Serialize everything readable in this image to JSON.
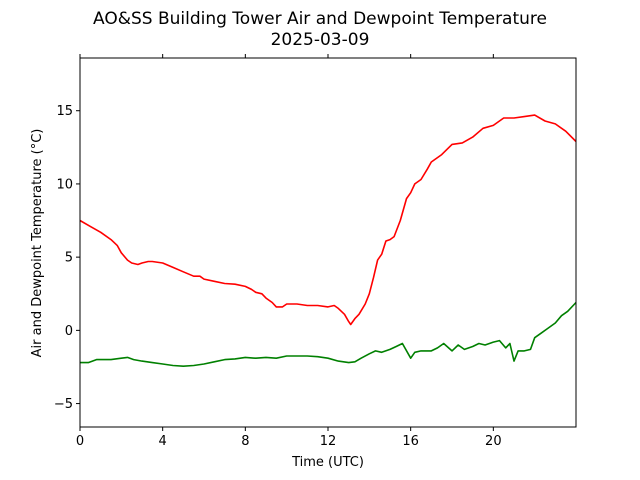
{
  "chart_data": {
    "type": "line",
    "title": "AO&SS Building Tower Air and Dewpoint Temperature",
    "subtitle": "2025-03-09",
    "xlabel": "Time (UTC)",
    "ylabel": "Air and Dewpoint Temperature (°C)",
    "xlim": [
      0,
      24
    ],
    "ylim": [
      -6.6,
      18.6
    ],
    "grid": false,
    "legend": "none",
    "x_ticks": [
      0,
      4,
      8,
      12,
      16,
      20
    ],
    "x_tick_labels": [
      "0",
      "4",
      "8",
      "12",
      "16",
      "20"
    ],
    "y_ticks": [
      -5,
      0,
      5,
      10,
      15
    ],
    "y_tick_labels": [
      "−5",
      "0",
      "5",
      "10",
      "15"
    ],
    "series": [
      {
        "color": "#ff0000",
        "x": [
          0,
          0.5,
          1,
          1.5,
          1.8,
          2,
          2.3,
          2.5,
          2.8,
          3,
          3.3,
          3.5,
          4,
          4.5,
          5,
          5.5,
          5.8,
          6,
          6.5,
          7,
          7.5,
          8,
          8.3,
          8.5,
          8.8,
          9,
          9.3,
          9.5,
          9.8,
          10,
          10.5,
          11,
          11.5,
          12,
          12.3,
          12.5,
          12.8,
          13,
          13.1,
          13.3,
          13.5,
          13.8,
          14,
          14.2,
          14.4,
          14.6,
          14.8,
          15,
          15.2,
          15.5,
          15.8,
          16,
          16.2,
          16.5,
          16.8,
          17,
          17.5,
          18,
          18.5,
          19,
          19.5,
          20,
          20.5,
          21,
          21.5,
          22,
          22.5,
          23,
          23.5,
          24
        ],
        "y": [
          7.5,
          7.1,
          6.7,
          6.2,
          5.8,
          5.3,
          4.8,
          4.6,
          4.5,
          4.6,
          4.7,
          4.7,
          4.6,
          4.3,
          4.0,
          3.7,
          3.7,
          3.5,
          3.35,
          3.2,
          3.15,
          3.0,
          2.8,
          2.6,
          2.5,
          2.2,
          1.9,
          1.6,
          1.6,
          1.8,
          1.8,
          1.7,
          1.7,
          1.6,
          1.7,
          1.5,
          1.1,
          0.6,
          0.4,
          0.8,
          1.1,
          1.8,
          2.5,
          3.6,
          4.8,
          5.2,
          6.1,
          6.2,
          6.4,
          7.5,
          9.0,
          9.4,
          10.0,
          10.3,
          11.0,
          11.5,
          12.0,
          12.7,
          12.8,
          13.2,
          13.8,
          14.0,
          14.5,
          14.5,
          14.6,
          14.7,
          14.3,
          14.1,
          13.6,
          12.9
        ]
      },
      {
        "color": "#008000",
        "x": [
          0,
          0.4,
          0.8,
          1,
          1.5,
          2,
          2.3,
          2.6,
          3,
          3.5,
          4,
          4.5,
          5,
          5.5,
          6,
          6.5,
          7,
          7.5,
          8,
          8.5,
          9,
          9.5,
          10,
          10.5,
          11,
          11.5,
          12,
          12.5,
          13,
          13.3,
          13.6,
          14,
          14.3,
          14.6,
          15,
          15.3,
          15.6,
          16,
          16.2,
          16.5,
          17,
          17.3,
          17.6,
          18,
          18.3,
          18.6,
          19,
          19.3,
          19.6,
          20,
          20.3,
          20.6,
          20.8,
          21,
          21.2,
          21.5,
          21.8,
          22,
          22.3,
          22.6,
          23,
          23.3,
          23.6,
          24
        ],
        "y": [
          -2.2,
          -2.2,
          -2.0,
          -2.0,
          -2.0,
          -1.9,
          -1.85,
          -2.0,
          -2.1,
          -2.2,
          -2.3,
          -2.4,
          -2.45,
          -2.4,
          -2.3,
          -2.15,
          -2.0,
          -1.95,
          -1.85,
          -1.9,
          -1.85,
          -1.9,
          -1.75,
          -1.75,
          -1.75,
          -1.8,
          -1.9,
          -2.1,
          -2.2,
          -2.15,
          -1.9,
          -1.6,
          -1.4,
          -1.5,
          -1.3,
          -1.1,
          -0.9,
          -1.9,
          -1.5,
          -1.4,
          -1.4,
          -1.2,
          -0.9,
          -1.4,
          -1.0,
          -1.3,
          -1.1,
          -0.9,
          -1.0,
          -0.8,
          -0.7,
          -1.2,
          -0.9,
          -2.1,
          -1.4,
          -1.4,
          -1.3,
          -0.5,
          -0.2,
          0.1,
          0.5,
          1.0,
          1.3,
          1.9
        ]
      }
    ]
  }
}
